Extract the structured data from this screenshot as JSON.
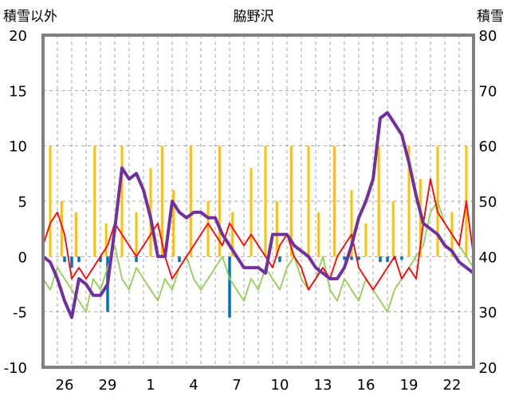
{
  "chart_data": {
    "type": "line",
    "title": "脇野沢",
    "left_axis_title": "積雪以外",
    "right_axis_title": "積雪",
    "left_axis": {
      "min": -10,
      "max": 20,
      "ticks": [
        "20",
        "15",
        "10",
        "5",
        "0",
        "-5",
        "-10"
      ]
    },
    "right_axis": {
      "min": 20,
      "max": 80,
      "ticks": [
        "80",
        "70",
        "60",
        "50",
        "40",
        "30",
        "20"
      ]
    },
    "x_ticks": [
      "26",
      "29",
      "1",
      "4",
      "7",
      "10",
      "13",
      "16",
      "19",
      "22"
    ],
    "grid": true,
    "colors": {
      "temperature": "#ff0000",
      "secondary_temp": "#92d050",
      "sunshine_bars": "#ffc000",
      "precip_bars": "#0070c0",
      "snow_depth": "#7030a0",
      "frame": "#808080",
      "grid": "#a6a6a6"
    },
    "series": [
      {
        "role": "snow_depth",
        "axis": "right",
        "x": [
          0,
          0.5,
          1,
          1.5,
          2,
          2.5,
          3,
          3.5,
          4,
          4.5,
          5,
          5.5,
          6,
          6.5,
          7,
          7.5,
          8,
          8.5,
          9,
          9.5,
          10,
          10.5,
          11,
          11.5,
          12,
          12.5,
          13,
          13.5,
          14,
          14.5,
          15,
          15.5,
          16,
          16.5,
          17,
          17.5,
          18,
          18.5,
          19,
          19.5,
          20,
          20.5,
          21,
          21.5,
          22,
          22.5,
          23,
          23.5,
          24,
          24.5,
          25,
          25.5,
          26,
          26.5,
          27,
          27.5,
          28,
          28.5,
          29,
          29.5,
          30
        ],
        "values": [
          40,
          39,
          36,
          32,
          29,
          36,
          35,
          33,
          33,
          35,
          45,
          56,
          54,
          55,
          52,
          47,
          40,
          40,
          50,
          48,
          47,
          48,
          48,
          47,
          47,
          44,
          42,
          40,
          38,
          38,
          38,
          37,
          44,
          44,
          44,
          42,
          41,
          40,
          38,
          37,
          36,
          36,
          38,
          42,
          47,
          50,
          54,
          65,
          66,
          64,
          62,
          57,
          51,
          46,
          45,
          44,
          42,
          41,
          39,
          38,
          37
        ]
      },
      {
        "role": "temperature",
        "axis": "left",
        "x": [
          0,
          0.5,
          1,
          1.5,
          2,
          2.5,
          3,
          3.5,
          4,
          4.5,
          5,
          5.5,
          6,
          6.5,
          7,
          7.5,
          8,
          8.5,
          9,
          9.5,
          10,
          10.5,
          11,
          11.5,
          12,
          12.5,
          13,
          13.5,
          14,
          14.5,
          15,
          15.5,
          16,
          16.5,
          17,
          17.5,
          18,
          18.5,
          19,
          19.5,
          20,
          20.5,
          21,
          21.5,
          22,
          22.5,
          23,
          23.5,
          24,
          24.5,
          25,
          25.5,
          26,
          26.5,
          27,
          27.5,
          28,
          28.5,
          29,
          29.5,
          30
        ],
        "values": [
          1,
          3,
          4,
          2,
          -2,
          -1,
          -2,
          -1,
          0,
          1,
          3,
          2,
          1,
          0,
          1,
          2,
          3,
          0,
          -2,
          -1,
          0,
          1,
          2,
          3,
          2,
          1,
          3,
          2,
          1,
          2,
          1,
          0,
          -1,
          1,
          2,
          0,
          -1,
          -3,
          -2,
          -1,
          -2,
          0,
          1,
          2,
          -1,
          -2,
          -3,
          -2,
          -1,
          0,
          -2,
          -1,
          -2,
          3,
          7,
          4,
          3,
          2,
          1,
          5,
          0
        ]
      },
      {
        "role": "secondary_temp",
        "axis": "left",
        "x": [
          0,
          0.5,
          1,
          1.5,
          2,
          2.5,
          3,
          3.5,
          4,
          4.5,
          5,
          5.5,
          6,
          6.5,
          7,
          7.5,
          8,
          8.5,
          9,
          9.5,
          10,
          10.5,
          11,
          11.5,
          12,
          12.5,
          13,
          13.5,
          14,
          14.5,
          15,
          15.5,
          16,
          16.5,
          17,
          17.5,
          18,
          18.5,
          19,
          19.5,
          20,
          20.5,
          21,
          21.5,
          22,
          22.5,
          23,
          23.5,
          24,
          24.5,
          25,
          25.5,
          26,
          26.5,
          27,
          27.5,
          28,
          28.5,
          29,
          29.5,
          30
        ],
        "values": [
          -2,
          -3,
          -1,
          -2,
          -3,
          -4,
          -5,
          -2,
          -3,
          -1,
          1,
          -2,
          -3,
          -1,
          -2,
          -3,
          -4,
          -2,
          -3,
          -1,
          0,
          -2,
          -3,
          -2,
          -1,
          0,
          -2,
          -3,
          -4,
          -2,
          -3,
          -1,
          -2,
          -3,
          -1,
          0,
          -2,
          -3,
          -2,
          0,
          -3,
          -4,
          -2,
          -3,
          -4,
          -2,
          -3,
          -4,
          -5,
          -3,
          -2,
          -1,
          0,
          1,
          4,
          5,
          3,
          2,
          1,
          0,
          -1
        ]
      }
    ],
    "bar_series": [
      {
        "role": "sunshine",
        "axis": "left",
        "x": [
          0.5,
          1.3,
          2.3,
          3.6,
          4.4,
          5.5,
          6.5,
          7.5,
          8.3,
          9.1,
          10.3,
          11.5,
          12.3,
          13.2,
          14.5,
          15.5,
          16.3,
          17.3,
          18.5,
          19.2,
          20.3,
          21.5,
          22.5,
          23.4,
          24.4,
          25.5,
          26.3,
          27.5,
          28.5,
          29.5
        ],
        "values": [
          10,
          5,
          4,
          10,
          3,
          10,
          4,
          8,
          10,
          6,
          10,
          5,
          10,
          4,
          8,
          10,
          5,
          10,
          10,
          4,
          10,
          6,
          3,
          10,
          5,
          10,
          7,
          10,
          4,
          10
        ]
      },
      {
        "role": "precipitation",
        "axis": "left",
        "x": [
          1.5,
          2,
          2.5,
          4,
          4.5,
          6.5,
          9.5,
          13,
          16.5,
          21,
          21.5,
          22,
          23.5,
          24,
          24.5,
          25
        ],
        "values": [
          -0.5,
          -1,
          -0.5,
          -0.5,
          -5,
          -0.5,
          -0.5,
          -5.5,
          -0.5,
          -0.3,
          -0.3,
          -0.3,
          -0.5,
          -0.5,
          -0.3,
          -0.3
        ]
      }
    ]
  }
}
